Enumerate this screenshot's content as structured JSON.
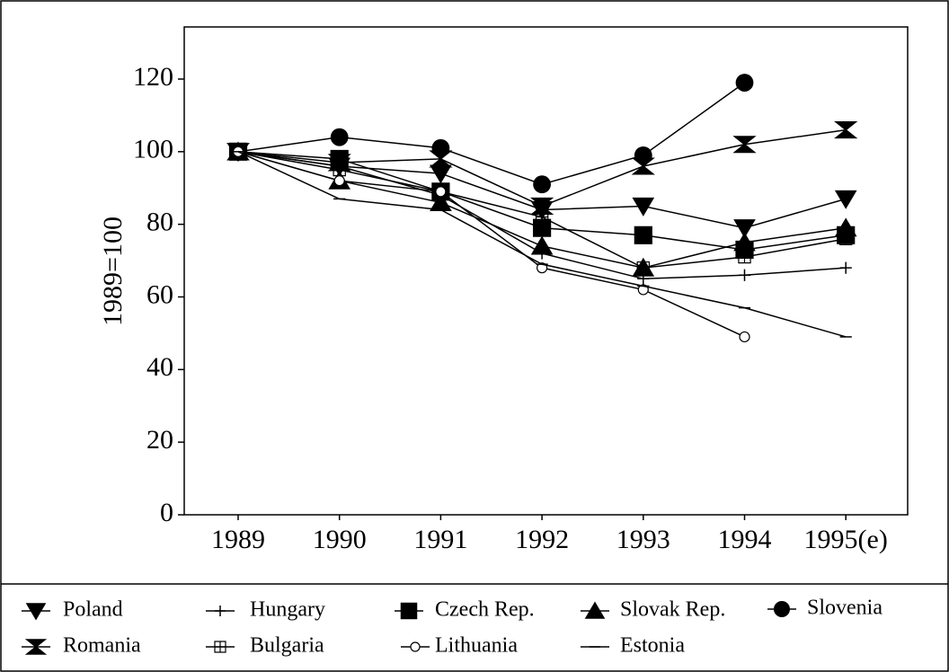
{
  "chart_data": {
    "type": "line",
    "ylabel": "1989=100",
    "categories": [
      "1989",
      "1990",
      "1991",
      "1992",
      "1993",
      "1994",
      "1995(e)"
    ],
    "ylim": [
      0,
      120
    ],
    "yticks": [
      0,
      20,
      40,
      60,
      80,
      100,
      120
    ],
    "series": [
      {
        "name": "Poland",
        "marker": "triangle-down",
        "color": "#000000",
        "values": [
          100,
          96,
          94,
          84,
          85,
          79,
          87
        ]
      },
      {
        "name": "Hungary",
        "marker": "plus",
        "color": "#000000",
        "values": [
          100,
          96,
          88,
          72,
          65,
          66,
          68
        ]
      },
      {
        "name": "Czech Rep.",
        "marker": "square",
        "color": "#000000",
        "values": [
          100,
          98,
          89,
          79,
          77,
          73,
          77
        ]
      },
      {
        "name": "Slovak Rep.",
        "marker": "triangle-up",
        "color": "#000000",
        "values": [
          100,
          92,
          86,
          74,
          68,
          75,
          79
        ]
      },
      {
        "name": "Slovenia",
        "marker": "circle",
        "color": "#000000",
        "values": [
          100,
          104,
          101,
          91,
          99,
          119,
          null
        ]
      },
      {
        "name": "Romania",
        "marker": "bowtie",
        "color": "#000000",
        "values": [
          100,
          97,
          98,
          85,
          96,
          102,
          106
        ]
      },
      {
        "name": "Bulgaria",
        "marker": "square-cross",
        "color": "#000000",
        "values": [
          100,
          95,
          89,
          82,
          68,
          71,
          76
        ]
      },
      {
        "name": "Lithuania",
        "marker": "open-circle",
        "color": "#000000",
        "values": [
          100,
          92,
          89,
          68,
          62,
          49,
          null
        ]
      },
      {
        "name": "Estonia",
        "marker": "dash",
        "color": "#000000",
        "values": [
          100,
          87,
          84,
          69,
          63,
          57,
          49
        ]
      }
    ]
  }
}
